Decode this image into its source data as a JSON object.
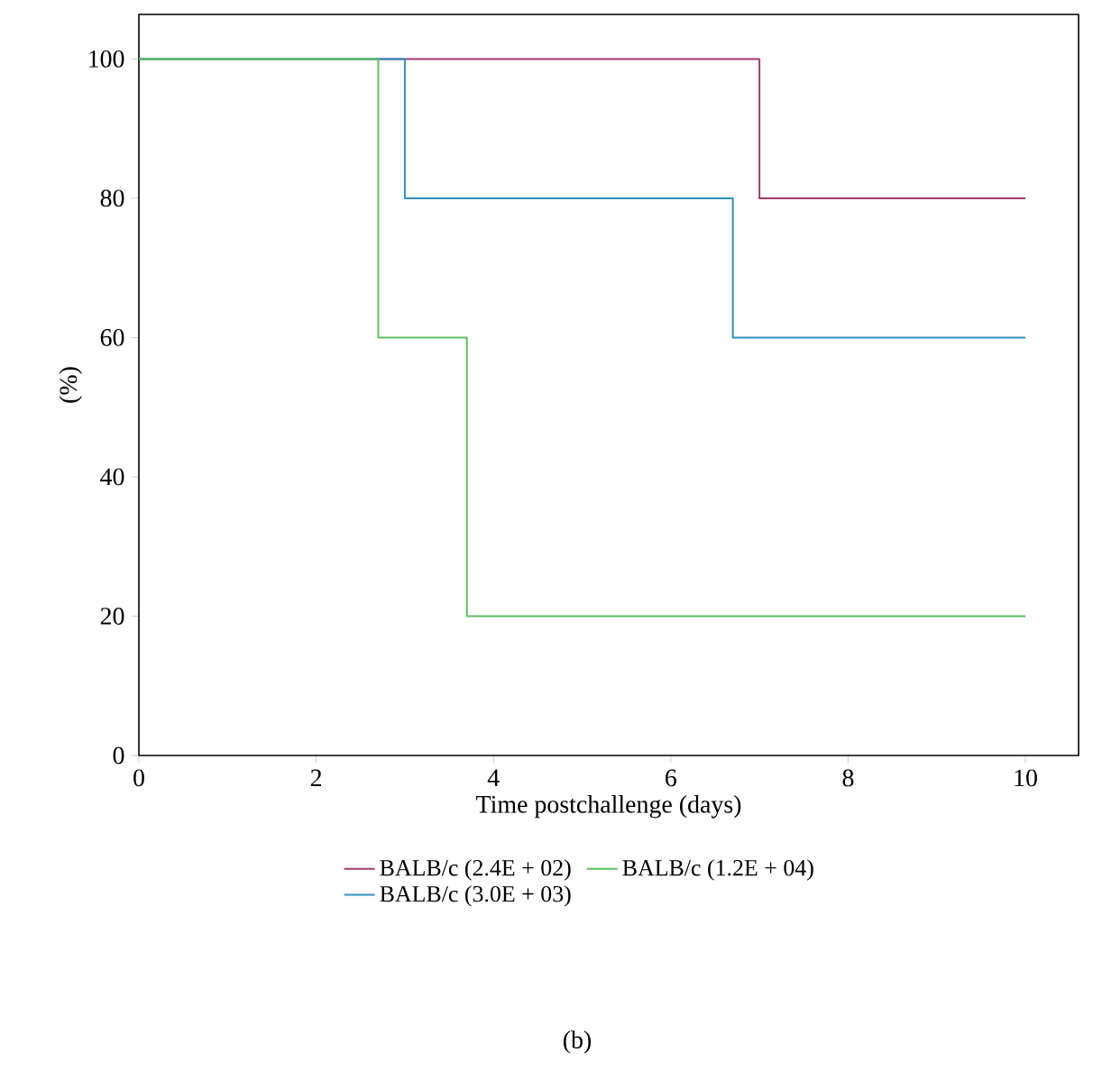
{
  "chart_data": {
    "type": "step",
    "xlabel": "Time postchallenge (days)",
    "ylabel": "(%)",
    "annotations": [
      "(b)"
    ],
    "xlim": [
      0,
      10.6
    ],
    "ylim": [
      0,
      106.4
    ],
    "xticks": [
      0,
      2,
      4,
      6,
      8,
      10
    ],
    "yticks": [
      0,
      20,
      40,
      60,
      80,
      100
    ],
    "legend": "bottom",
    "grid": false,
    "line_style": "solid",
    "marker": "none",
    "series": [
      {
        "name": "BALB/c (2.4E + 02)",
        "color": "#a03a6e",
        "x": [
          0,
          7,
          10
        ],
        "values": [
          100,
          80,
          80
        ]
      },
      {
        "name": "BALB/c (3.0E + 03)",
        "color": "#2e90c0",
        "x": [
          0,
          3,
          6.7,
          10
        ],
        "values": [
          100,
          80,
          60,
          60
        ]
      },
      {
        "name": "BALB/c (1.2E + 04)",
        "color": "#5cbf5c",
        "x": [
          0,
          2.7,
          3.7,
          10
        ],
        "values": [
          100,
          60,
          20,
          20
        ]
      }
    ]
  }
}
